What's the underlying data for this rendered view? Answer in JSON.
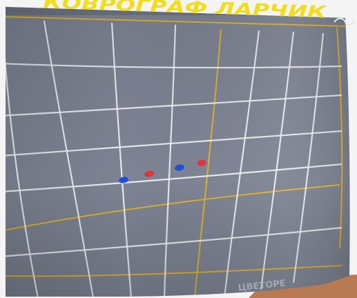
{
  "board": {
    "title": "КОВРОГРАФ ЛАРЧИК",
    "bottom_caption": "ЦВЕТОРЕ"
  },
  "colors": {
    "fabric": "#7e8494",
    "white_line": "#eef0f2",
    "yellow_line": "#e0b32f",
    "title": "#f2dc1e",
    "blue_marker": "#1f4fd8",
    "red_marker": "#e0353b",
    "floor_wood": "#b87a52"
  },
  "markers": [
    {
      "color": "blue"
    },
    {
      "color": "red"
    },
    {
      "color": "blue"
    },
    {
      "color": "red"
    }
  ]
}
